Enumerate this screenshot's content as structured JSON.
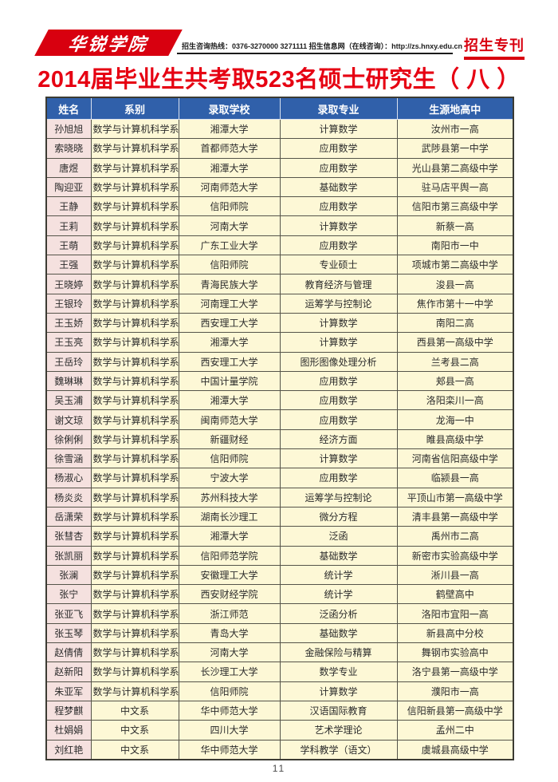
{
  "page": {
    "title": "2014届毕业生共考取523名硕士研究生（ 八 ）",
    "page_number": "11"
  },
  "header": {
    "logo_text": "华锐学院",
    "contact_line": "招生咨询热线：0376-3270000 3271111  招生信息网（在线咨询）：http://zs.hnxy.edu.cn",
    "badge": "招生专刊"
  },
  "colors": {
    "brand_red": "#d8000f",
    "title_red": "#e60012",
    "table_header_blue": "#3060aa",
    "name_cell_pink": "#f5e1df",
    "data_cell_yellow": "#fdf8d6",
    "grid_border": "#55544a"
  },
  "table": {
    "columns": [
      "姓名",
      "系别",
      "录取学校",
      "录取专业",
      "生源地高中"
    ],
    "rows": [
      [
        "孙旭旭",
        "数学与计算机科学系",
        "湘潭大学",
        "计算数学",
        "汝州市一高"
      ],
      [
        "索晓晓",
        "数学与计算机科学系",
        "首都师范大学",
        "应用数学",
        "武陟县第一中学"
      ],
      [
        "唐煜",
        "数学与计算机科学系",
        "湘潭大学",
        "应用数学",
        "光山县第二高级中学"
      ],
      [
        "陶迎亚",
        "数学与计算机科学系",
        "河南师范大学",
        "基础数学",
        "驻马店平舆一高"
      ],
      [
        "王静",
        "数学与计算机科学系",
        "信阳师院",
        "应用数学",
        "信阳市第三高级中学"
      ],
      [
        "王莉",
        "数学与计算机科学系",
        "河南大学",
        "计算数学",
        "新蔡一高"
      ],
      [
        "王萌",
        "数学与计算机科学系",
        "广东工业大学",
        "应用数学",
        "南阳市一中"
      ],
      [
        "王强",
        "数学与计算机科学系",
        "信阳师院",
        "专业硕士",
        "项城市第二高级中学"
      ],
      [
        "王晓婷",
        "数学与计算机科学系",
        "青海民族大学",
        "教育经济与管理",
        "浚县一高"
      ],
      [
        "王银玲",
        "数学与计算机科学系",
        "河南理工大学",
        "运筹学与控制论",
        "焦作市第十一中学"
      ],
      [
        "王玉娇",
        "数学与计算机科学系",
        "西安理工大学",
        "计算数学",
        "南阳二高"
      ],
      [
        "王玉亮",
        "数学与计算机科学系",
        "湘潭大学",
        "计算数学",
        "西县第一高级中学"
      ],
      [
        "王岳玲",
        "数学与计算机科学系",
        "西安理工大学",
        "图形图像处理分析",
        "兰考县二高"
      ],
      [
        "魏琳琳",
        "数学与计算机科学系",
        "中国计量学院",
        "应用数学",
        "郏县一高"
      ],
      [
        "吴玉浦",
        "数学与计算机科学系",
        "湘潭大学",
        "应用数学",
        "洛阳栾川一高"
      ],
      [
        "谢文琼",
        "数学与计算机科学系",
        "闽南师范大学",
        "应用数学",
        "龙海一中"
      ],
      [
        "徐俐俐",
        "数学与计算机科学系",
        "新疆财经",
        "经济方面",
        "睢县高级中学"
      ],
      [
        "徐雪涵",
        "数学与计算机科学系",
        "信阳师院",
        "计算数学",
        "河南省信阳高级中学"
      ],
      [
        "杨淑心",
        "数学与计算机科学系",
        "宁波大学",
        "应用数学",
        "临颍县一高"
      ],
      [
        "杨炎炎",
        "数学与计算机科学系",
        "苏州科技大学",
        "运筹学与控制论",
        "平顶山市第一高级中学"
      ],
      [
        "岳潇荣",
        "数学与计算机科学系",
        "湖南长沙理工",
        "微分方程",
        "清丰县第一高级中学"
      ],
      [
        "张彗杏",
        "数学与计算机科学系",
        "湘潭大学",
        "泛函",
        "禹州市二高"
      ],
      [
        "张凯丽",
        "数学与计算机科学系",
        "信阳师范学院",
        "基础数学",
        "新密市实验高级中学"
      ],
      [
        "张澜",
        "数学与计算机科学系",
        "安徽理工大学",
        "统计学",
        "淅川县一高"
      ],
      [
        "张宁",
        "数学与计算机科学系",
        "西安财经学院",
        "统计学",
        "鹤壁高中"
      ],
      [
        "张亚飞",
        "数学与计算机科学系",
        "浙江师范",
        "泛函分析",
        "洛阳市宜阳一高"
      ],
      [
        "张玉琴",
        "数学与计算机科学系",
        "青岛大学",
        "基础数学",
        "新县高中分校"
      ],
      [
        "赵倩倩",
        "数学与计算机科学系",
        "河南大学",
        "金融保险与精算",
        "舞钢市实验高中"
      ],
      [
        "赵新阳",
        "数学与计算机科学系",
        "长沙理工大学",
        "数学专业",
        "洛宁县第一高级中学"
      ],
      [
        "朱亚军",
        "数学与计算机科学系",
        "信阳师院",
        "计算数学",
        "濮阳市一高"
      ],
      [
        "程梦麒",
        "中文系",
        "华中师范大学",
        "汉语国际教育",
        "信阳新县第一高级中学"
      ],
      [
        "杜娟娟",
        "中文系",
        "四川大学",
        "艺术学理论",
        "孟州二中"
      ],
      [
        "刘红艳",
        "中文系",
        "华中师范大学",
        "学科教学（语文）",
        "虞城县高级中学"
      ]
    ]
  }
}
